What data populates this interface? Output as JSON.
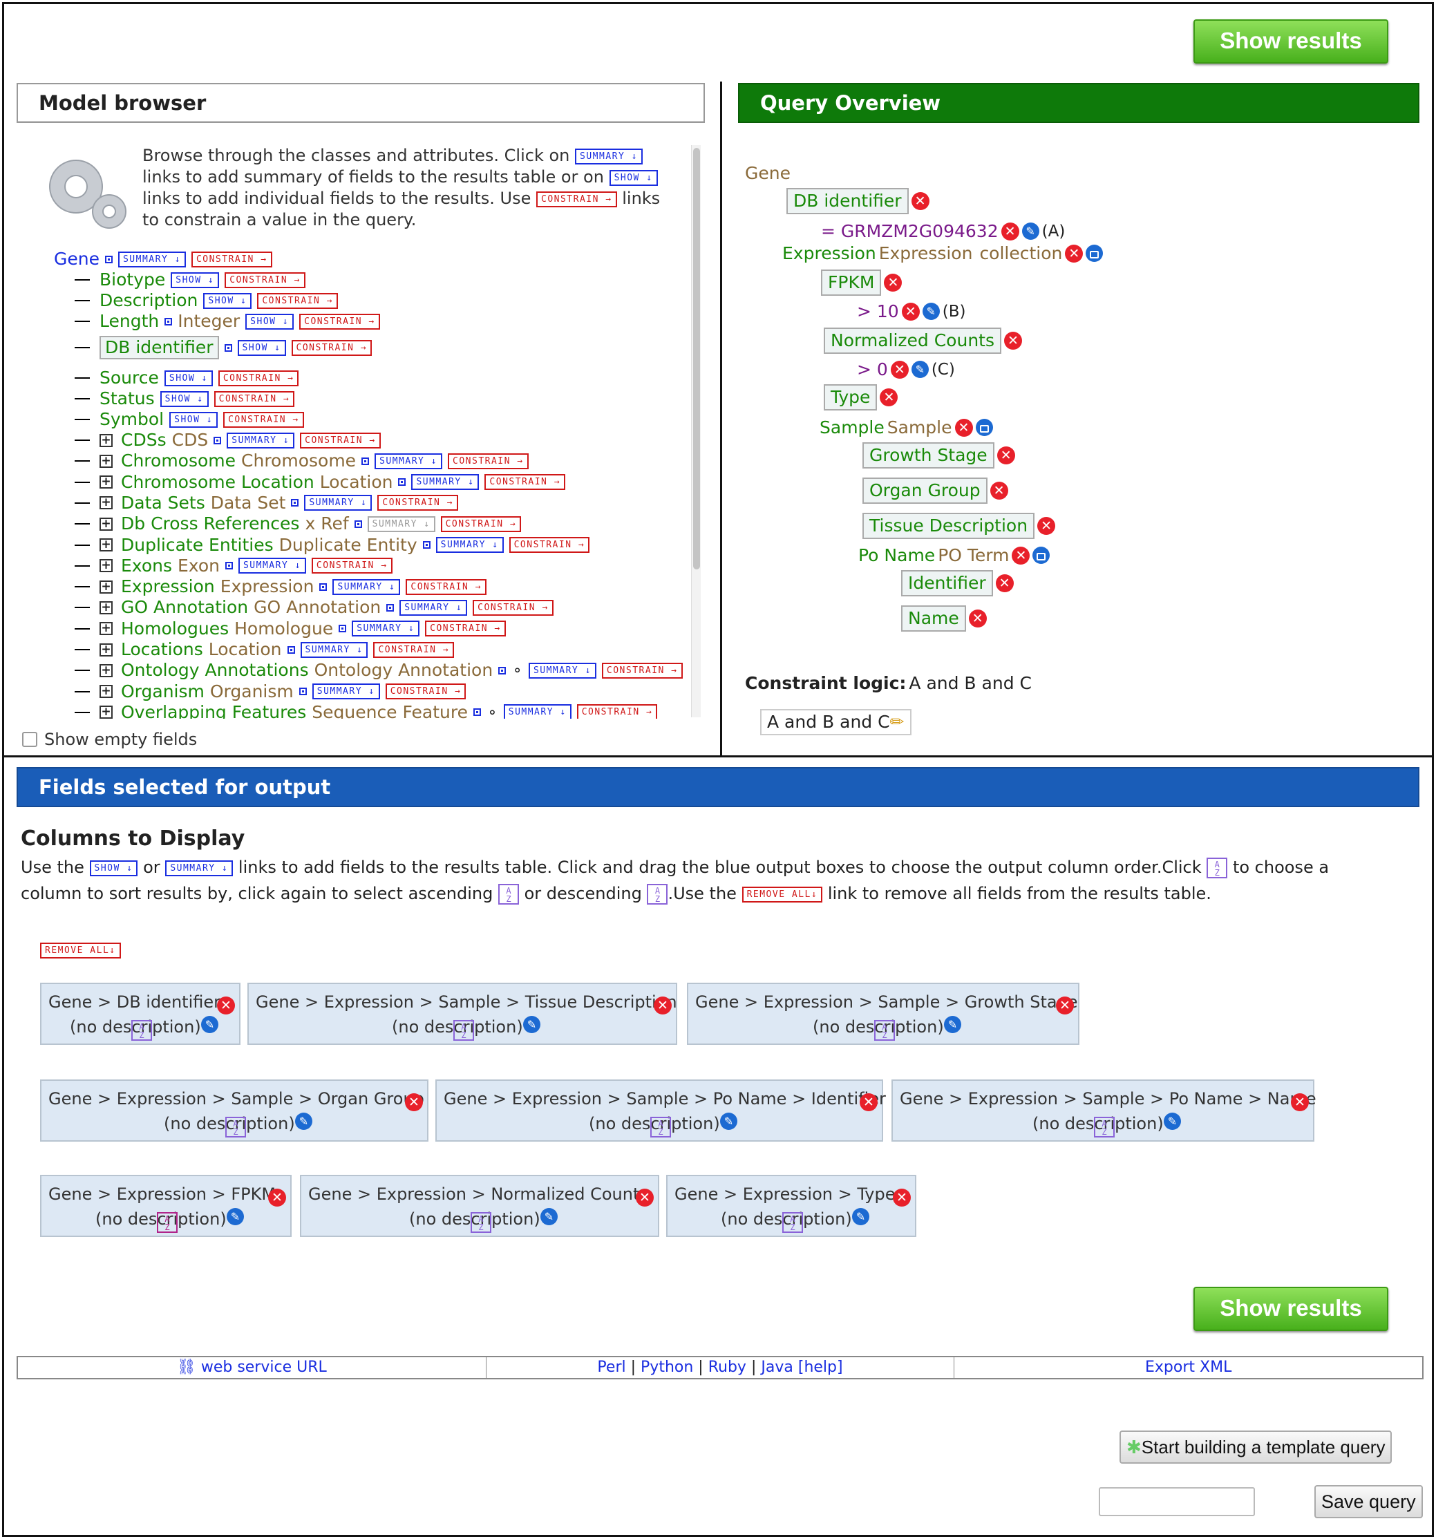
{
  "show_results_label": "Show results",
  "model_browser": {
    "title": "Model browser",
    "help_1": "Browse through the classes and attributes. Click on",
    "help_2": "links to add summary of fields to the results table or on",
    "help_3": "links to add individual fields to the results. Use",
    "help_4": "links",
    "help_5": "to constrain a value in the query.",
    "tag_summary": "SUMMARY ↓",
    "tag_show": "SHOW ↓",
    "tag_constrain": "CONSTRAIN →",
    "root": "Gene",
    "attributes": [
      {
        "name": "Biotype"
      },
      {
        "name": "Description"
      },
      {
        "name": "Length",
        "type": "Integer"
      },
      {
        "name": "DB identifier"
      },
      {
        "name": "Source"
      },
      {
        "name": "Status"
      },
      {
        "name": "Symbol"
      }
    ],
    "references": [
      {
        "name": "CDSs",
        "type": "CDS"
      },
      {
        "name": "Chromosome",
        "type": "Chromosome"
      },
      {
        "name": "Chromosome Location",
        "type": "Location"
      },
      {
        "name": "Data Sets",
        "type": "Data Set"
      },
      {
        "name": "Db Cross References",
        "type": "x Ref"
      },
      {
        "name": "Duplicate Entities",
        "type": "Duplicate Entity"
      },
      {
        "name": "Exons",
        "type": "Exon"
      },
      {
        "name": "Expression",
        "type": "Expression"
      },
      {
        "name": "GO Annotation",
        "type": "GO Annotation"
      },
      {
        "name": "Homologues",
        "type": "Homologue"
      },
      {
        "name": "Locations",
        "type": "Location"
      },
      {
        "name": "Ontology Annotations",
        "type": "Ontology Annotation"
      },
      {
        "name": "Organism",
        "type": "Organism"
      },
      {
        "name": "Overlapping Features",
        "type": "Sequence Feature"
      }
    ],
    "show_empty_fields": "Show empty fields"
  },
  "query_overview": {
    "title": "Query Overview",
    "root": "Gene",
    "db_identifier": "DB identifier",
    "constraint_a": "= GRMZM2G094632",
    "label_a": "(A)",
    "expression": "Expression",
    "expression_type": "Expression",
    "collection": "collection",
    "fpkm": "FPKM",
    "constraint_b": "> 10",
    "label_b": "(B)",
    "normalized_counts": "Normalized Counts",
    "constraint_c": "> 0",
    "label_c": "(C)",
    "type": "Type",
    "sample": "Sample",
    "sample_type": "Sample",
    "growth_stage": "Growth Stage",
    "organ_group": "Organ Group",
    "tissue_description": "Tissue Description",
    "po_name": "Po Name",
    "po_name_type": "PO Term",
    "identifier": "Identifier",
    "name": "Name",
    "constraint_logic_label": "Constraint logic:",
    "constraint_logic_value": "A and B and C",
    "logic_box": "A and B and C"
  },
  "fields_selected": {
    "title": "Fields selected for output",
    "columns_heading": "Columns to Display",
    "help_use_the": "Use the",
    "help_or": "or",
    "help_links": "links to add fields to the results table. Click and drag the blue output boxes to choose the output column order.Click",
    "help_to_choose": "to choose a",
    "help_line2a": "column to sort results by, click again to select ascending",
    "help_or_desc": "or descending",
    "help_use_the2": ".Use the",
    "help_remove": "link to remove all fields from the results table.",
    "remove_all": "REMOVE ALL↓",
    "no_description": "(no description)",
    "columns": [
      {
        "path": "Gene > DB identifier"
      },
      {
        "path": "Gene > Expression > Sample > Tissue Description"
      },
      {
        "path": "Gene > Expression > Sample > Growth Stage"
      },
      {
        "path": "Gene > Expression > Sample > Organ Group"
      },
      {
        "path": "Gene > Expression > Sample > Po Name > Identifier"
      },
      {
        "path": "Gene > Expression > Sample > Po Name > Name"
      },
      {
        "path": "Gene > Expression > FPKM"
      },
      {
        "path": "Gene > Expression > Normalized Counts"
      },
      {
        "path": "Gene > Expression > Type"
      }
    ]
  },
  "footer": {
    "web_service_url": "web service URL",
    "perl": "Perl",
    "python": "Python",
    "ruby": "Ruby",
    "java": "Java",
    "help": "[help]",
    "sep": "|",
    "export_xml": "Export XML",
    "start_template": "Start building a template query",
    "save_query_value": "",
    "save_query": "Save query"
  },
  "colors": {
    "green_header": "#0e7a0a",
    "blue_header": "#1a5db8",
    "card_bg": "#dde8f4"
  }
}
